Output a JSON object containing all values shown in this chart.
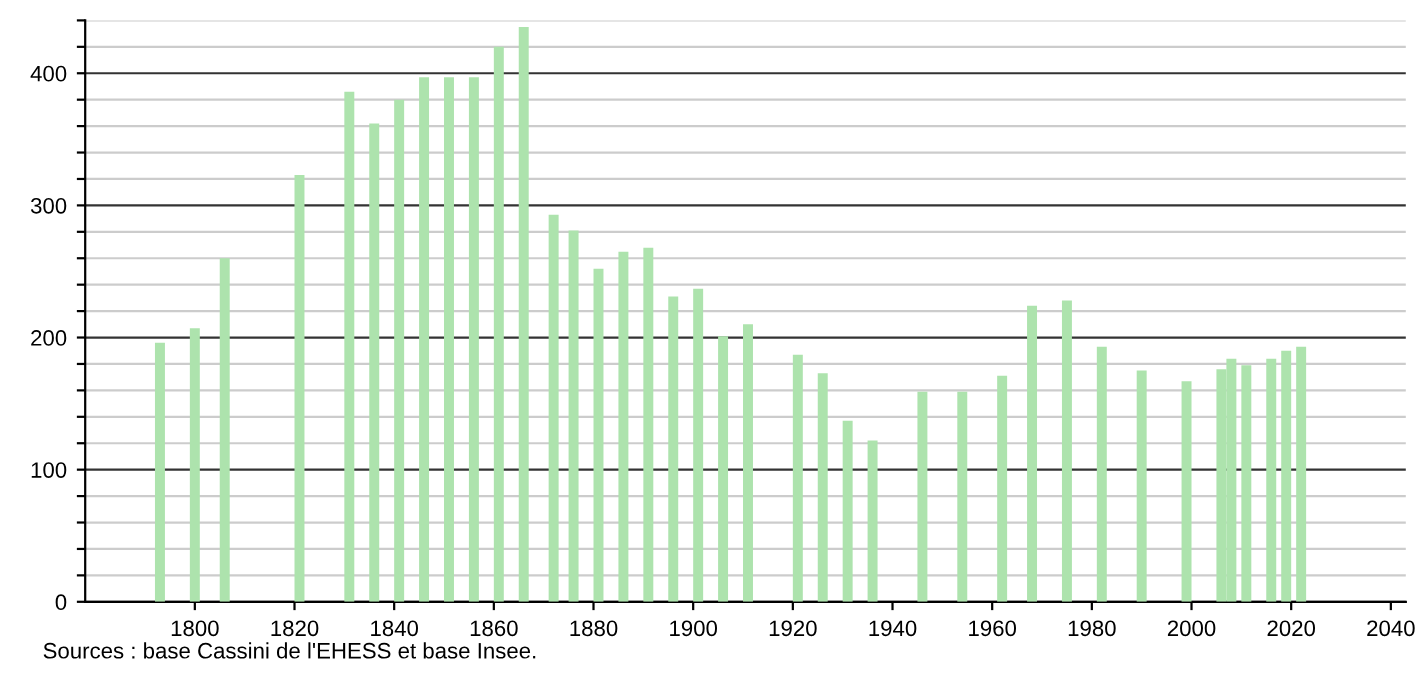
{
  "chart_data": {
    "type": "bar",
    "color": "#ade3ad",
    "x": [
      1793,
      1800,
      1806,
      1821,
      1831,
      1836,
      1841,
      1846,
      1851,
      1856,
      1861,
      1866,
      1872,
      1876,
      1881,
      1886,
      1891,
      1896,
      1901,
      1906,
      1911,
      1921,
      1926,
      1931,
      1936,
      1946,
      1954,
      1962,
      1968,
      1975,
      1982,
      1990,
      1999,
      2006,
      2008,
      2011,
      2016,
      2019,
      2022
    ],
    "values": [
      196,
      207,
      260,
      323,
      386,
      362,
      380,
      397,
      397,
      397,
      420,
      435,
      293,
      281,
      252,
      265,
      268,
      231,
      237,
      201,
      210,
      187,
      173,
      137,
      122,
      159,
      159,
      171,
      224,
      228,
      193,
      175,
      167,
      176,
      184,
      179,
      184,
      190,
      193
    ],
    "xlim": [
      1778,
      2043
    ],
    "xticks": [
      1800,
      1820,
      1840,
      1860,
      1880,
      1900,
      1920,
      1940,
      1960,
      1980,
      2000,
      2020,
      2040
    ],
    "ylim": [
      0,
      440
    ],
    "yticks": [
      0,
      {
        "value": 20,
        "label": null
      },
      {
        "value": 40,
        "label": null
      },
      {
        "value": 60,
        "label": null
      },
      {
        "value": 80,
        "label": null
      },
      100,
      {
        "value": 120,
        "label": null
      },
      {
        "value": 140,
        "label": null
      },
      {
        "value": 160,
        "label": null
      },
      {
        "value": 180,
        "label": null
      },
      200,
      {
        "value": 220,
        "label": null
      },
      {
        "value": 240,
        "label": null
      },
      {
        "value": 260,
        "label": null
      },
      {
        "value": 280,
        "label": null
      },
      300,
      {
        "value": 320,
        "label": null
      },
      {
        "value": 340,
        "label": null
      },
      {
        "value": 360,
        "label": null
      },
      {
        "value": 380,
        "label": null
      },
      400,
      {
        "value": 420,
        "label": null
      },
      {
        "value": 440,
        "label": null
      }
    ],
    "grid": "y",
    "annotations": [
      "Sources : base Cassini de l'EHESS et base Insee."
    ]
  }
}
